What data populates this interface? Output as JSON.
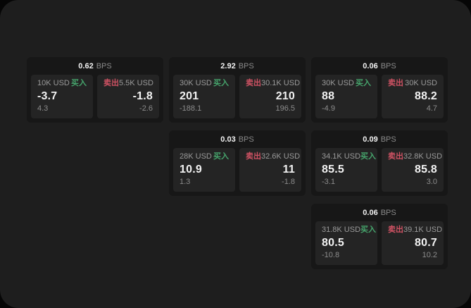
{
  "colors": {
    "window_bg": "#1e1e1e",
    "card_bg": "#171717",
    "panel_bg": "#242424",
    "buy": "#46a46c",
    "sell": "#cf5263",
    "label": "#9a9a9a",
    "muted": "#8a8a8a",
    "delta": "#8c8c8c",
    "value": "#f2f2f2"
  },
  "labels": {
    "bps_unit": "BPS",
    "buy": "买入",
    "sell": "卖出"
  },
  "cards": [
    {
      "row": 1,
      "col": 1,
      "bps": "0.62",
      "buy": {
        "size": "10K USD",
        "price": "-3.7",
        "delta": "4.3"
      },
      "sell": {
        "size": "5.5K USD",
        "price": "-1.8",
        "delta": "-2.6"
      }
    },
    {
      "row": 1,
      "col": 2,
      "bps": "2.92",
      "buy": {
        "size": "30K USD",
        "price": "201",
        "delta": "-188.1"
      },
      "sell": {
        "size": "30.1K USD",
        "price": "210",
        "delta": "196.5"
      }
    },
    {
      "row": 1,
      "col": 3,
      "bps": "0.06",
      "buy": {
        "size": "30K USD",
        "price": "88",
        "delta": "-4.9"
      },
      "sell": {
        "size": "30K USD",
        "price": "88.2",
        "delta": "4.7"
      }
    },
    {
      "row": 2,
      "col": 2,
      "bps": "0.03",
      "buy": {
        "size": "28K USD",
        "price": "10.9",
        "delta": "1.3"
      },
      "sell": {
        "size": "32.6K USD",
        "price": "11",
        "delta": "-1.8"
      }
    },
    {
      "row": 2,
      "col": 3,
      "bps": "0.09",
      "buy": {
        "size": "34.1K USD",
        "price": "85.5",
        "delta": "-3.1"
      },
      "sell": {
        "size": "32.8K USD",
        "price": "85.8",
        "delta": "3.0"
      }
    },
    {
      "row": 3,
      "col": 3,
      "bps": "0.06",
      "buy": {
        "size": "31.8K USD",
        "price": "80.5",
        "delta": "-10.8"
      },
      "sell": {
        "size": "39.1K USD",
        "price": "80.7",
        "delta": "10.2"
      }
    }
  ]
}
